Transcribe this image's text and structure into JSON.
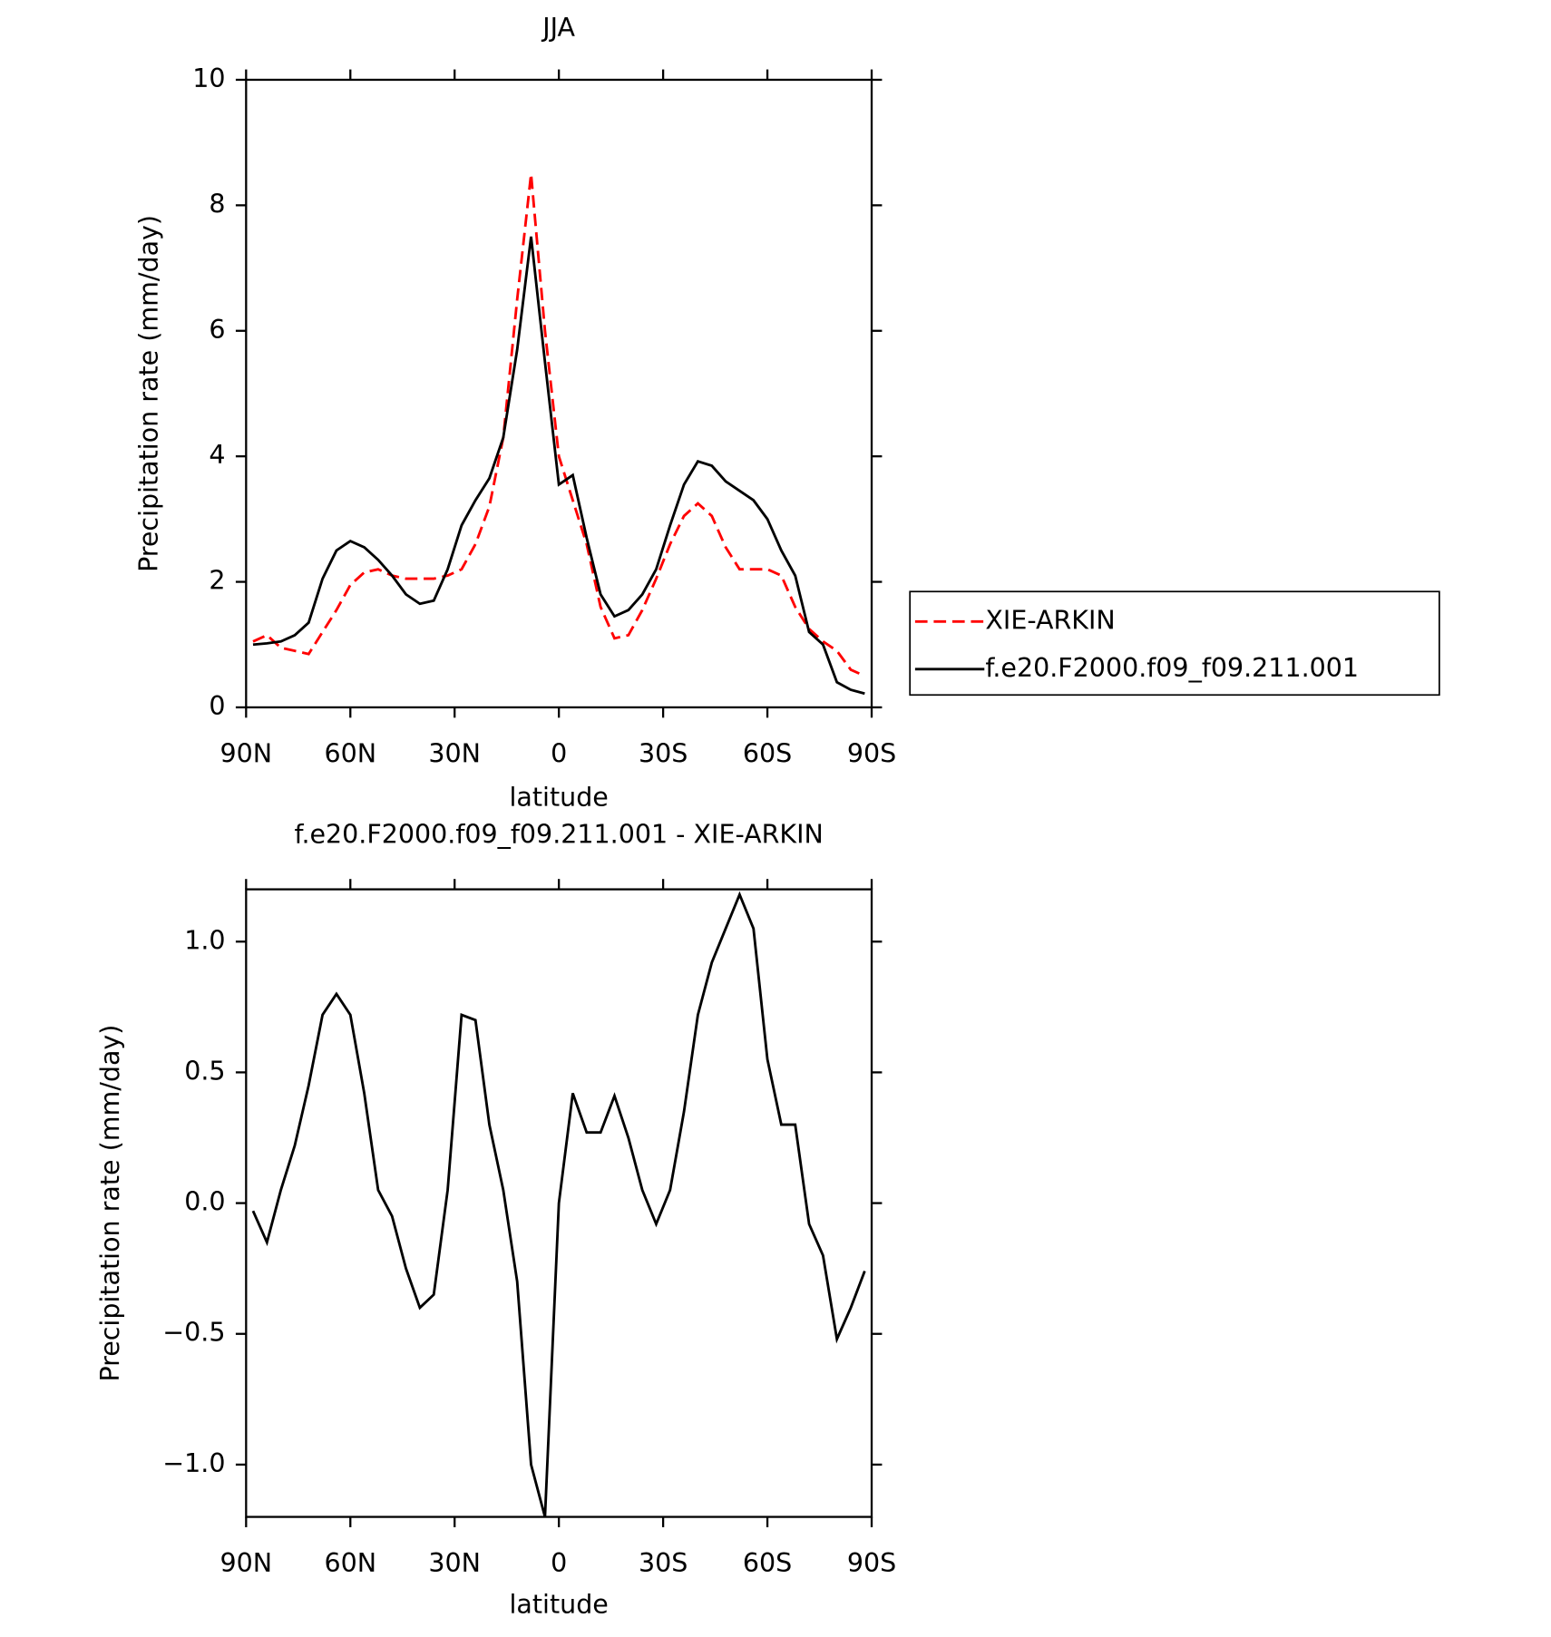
{
  "chart_data": [
    {
      "type": "line",
      "title": "JJA",
      "xlabel": "latitude",
      "ylabel": "Precipitation rate (mm/day)",
      "x": [
        88,
        84,
        80,
        76,
        72,
        68,
        64,
        60,
        56,
        52,
        48,
        44,
        40,
        36,
        32,
        28,
        24,
        20,
        16,
        12,
        8,
        4,
        0,
        -4,
        -8,
        -12,
        -16,
        -20,
        -24,
        -28,
        -32,
        -36,
        -40,
        -44,
        -48,
        -52,
        -56,
        -60,
        -64,
        -68,
        -72,
        -76,
        -80,
        -84,
        -88
      ],
      "series": [
        {
          "name": "XIE-ARKIN",
          "color": "#ff0000",
          "dashed": true,
          "values": [
            1.05,
            1.15,
            0.95,
            0.9,
            0.85,
            1.2,
            1.55,
            1.95,
            2.15,
            2.2,
            2.1,
            2.05,
            2.05,
            2.05,
            2.1,
            2.2,
            2.6,
            3.2,
            4.3,
            6.5,
            8.5,
            6.0,
            4.0,
            3.3,
            2.6,
            1.6,
            1.1,
            1.15,
            1.55,
            2.05,
            2.6,
            3.05,
            3.25,
            3.05,
            2.55,
            2.2,
            2.2,
            2.2,
            2.1,
            1.6,
            1.25,
            1.05,
            0.9,
            0.6,
            0.5
          ]
        },
        {
          "name": "f.e20.F2000.f09_f09.211.001",
          "color": "#000000",
          "dashed": false,
          "values": [
            1.0,
            1.02,
            1.05,
            1.15,
            1.35,
            2.05,
            2.5,
            2.65,
            2.55,
            2.35,
            2.1,
            1.8,
            1.65,
            1.7,
            2.2,
            2.9,
            3.3,
            3.65,
            4.3,
            5.7,
            7.5,
            5.5,
            3.55,
            3.7,
            2.7,
            1.8,
            1.45,
            1.55,
            1.8,
            2.2,
            2.9,
            3.55,
            3.92,
            3.85,
            3.6,
            3.45,
            3.3,
            3.0,
            2.5,
            2.1,
            1.2,
            1.0,
            0.4,
            0.28,
            0.22
          ]
        }
      ],
      "xlim": [
        90,
        -90
      ],
      "xticks": [
        {
          "value": 90,
          "label": "90N"
        },
        {
          "value": 60,
          "label": "60N"
        },
        {
          "value": 30,
          "label": "30N"
        },
        0,
        {
          "value": -30,
          "label": "30S"
        },
        {
          "value": -60,
          "label": "60S"
        },
        {
          "value": -90,
          "label": "90S"
        }
      ],
      "ylim": [
        0,
        10
      ],
      "yticks": [
        0,
        2,
        4,
        6,
        8,
        10
      ],
      "legend": "right"
    },
    {
      "type": "line",
      "title": "f.e20.F2000.f09_f09.211.001 - XIE-ARKIN",
      "xlabel": "latitude",
      "ylabel": "Precipitation rate (mm/day)",
      "x": [
        88,
        84,
        80,
        76,
        72,
        68,
        64,
        60,
        56,
        52,
        48,
        44,
        40,
        36,
        32,
        28,
        24,
        20,
        16,
        12,
        8,
        4,
        0,
        -4,
        -8,
        -12,
        -16,
        -20,
        -24,
        -28,
        -32,
        -36,
        -40,
        -44,
        -48,
        -52,
        -56,
        -60,
        -64,
        -68,
        -72,
        -76,
        -80,
        -84,
        -88
      ],
      "series": [
        {
          "color": "#000000",
          "dashed": false,
          "values": [
            -0.03,
            -0.15,
            0.05,
            0.22,
            0.45,
            0.72,
            0.8,
            0.72,
            0.42,
            0.05,
            -0.05,
            -0.25,
            -0.4,
            -0.35,
            0.05,
            0.72,
            0.7,
            0.3,
            0.05,
            -0.3,
            -1.0,
            -1.2,
            0.0,
            0.42,
            0.27,
            0.27,
            0.41,
            0.25,
            0.05,
            -0.08,
            0.05,
            0.35,
            0.72,
            0.92,
            1.05,
            1.18,
            1.05,
            0.55,
            0.3,
            0.3,
            -0.08,
            -0.2,
            -0.52,
            -0.4,
            -0.26
          ]
        }
      ],
      "xlim": [
        90,
        -90
      ],
      "xticks": [
        {
          "value": 90,
          "label": "90N"
        },
        {
          "value": 60,
          "label": "60N"
        },
        {
          "value": 30,
          "label": "30N"
        },
        0,
        {
          "value": -30,
          "label": "30S"
        },
        {
          "value": -60,
          "label": "60S"
        },
        {
          "value": -90,
          "label": "90S"
        }
      ],
      "ylim": [
        -1.2,
        1.2
      ],
      "yticks": [
        {
          "value": -1.0,
          "label": "−1.0"
        },
        {
          "value": -0.5,
          "label": "−0.5"
        },
        {
          "value": 0.0,
          "label": "0.0"
        },
        0.5,
        {
          "value": 1.0,
          "label": "1.0"
        }
      ]
    }
  ]
}
